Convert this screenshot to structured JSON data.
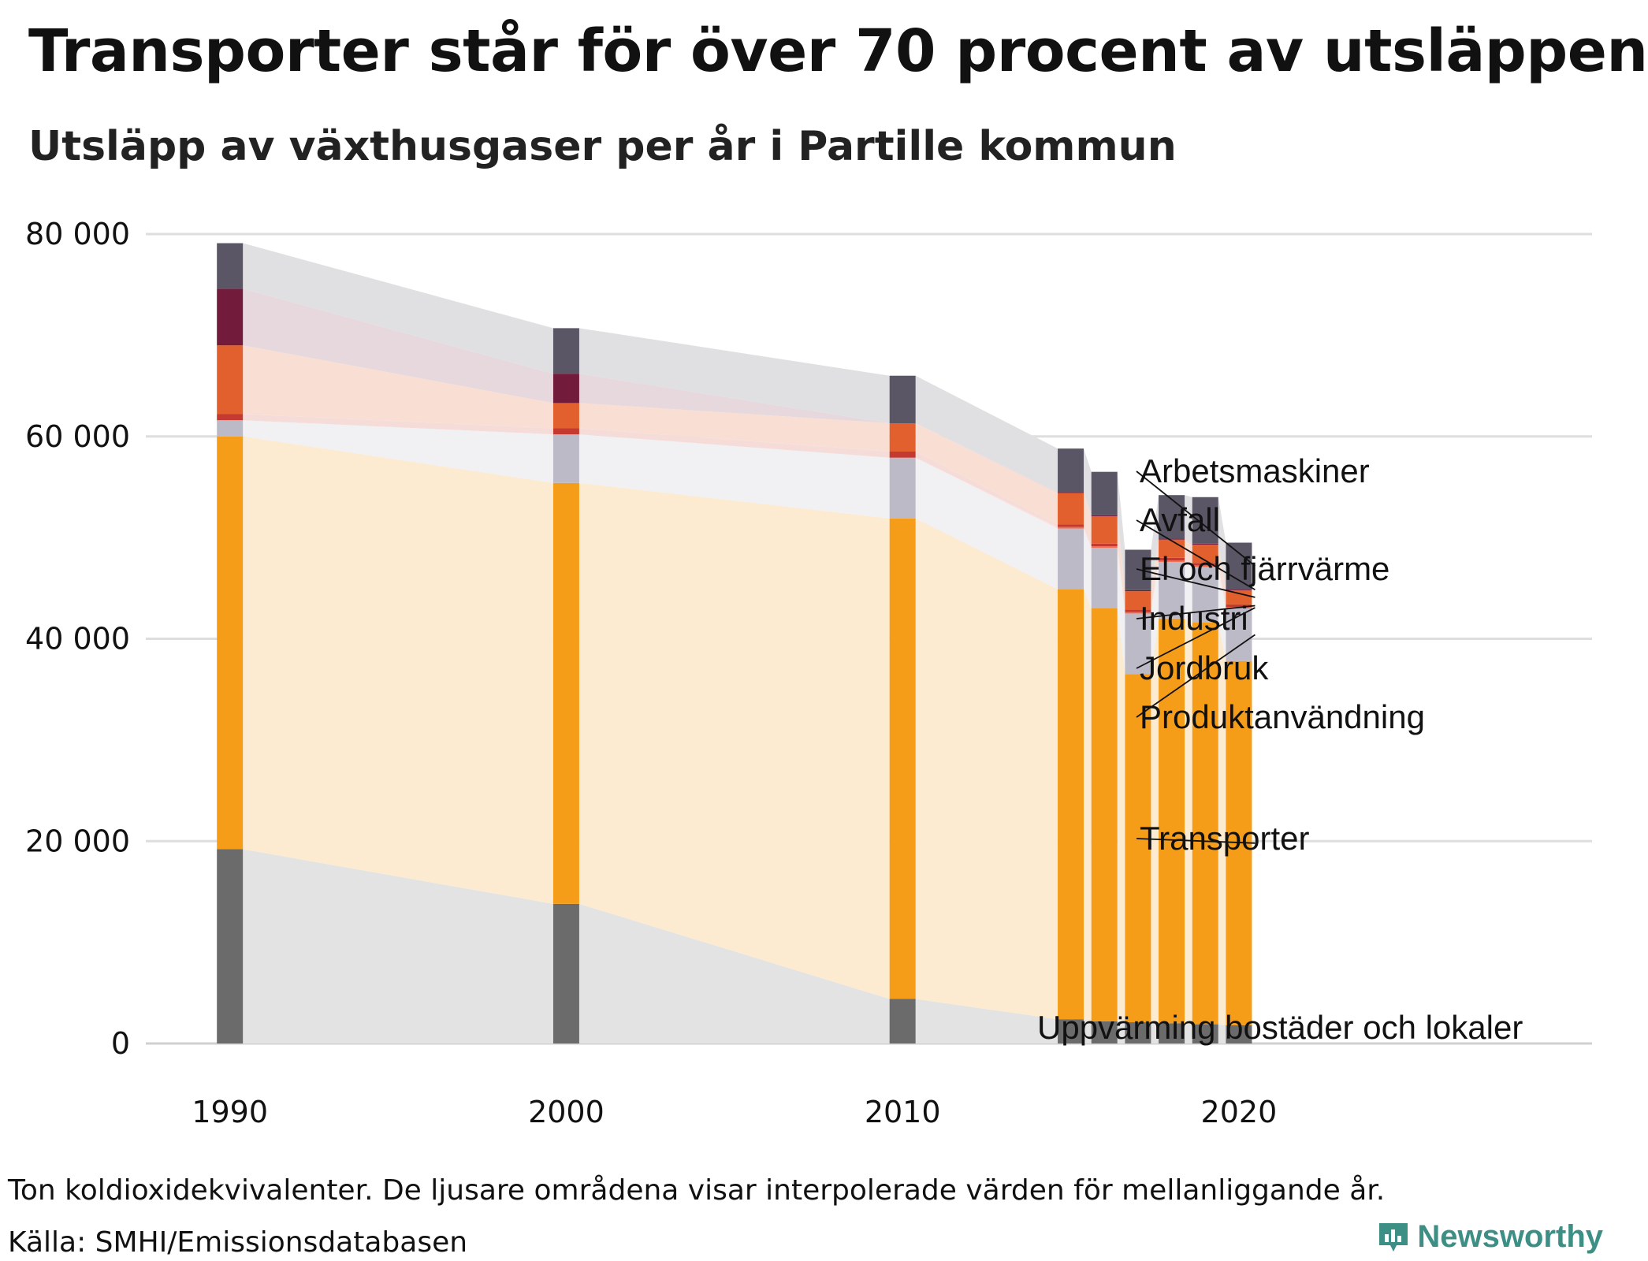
{
  "header": {
    "title": "Transporter står för över 70 procent av utsläppen",
    "subtitle": "Utsläpp av växthusgaser per år i Partille kommun"
  },
  "footer": {
    "note": "Ton koldioxidekvivalenter. De ljusare områdena visar interpolerade värden för mellanliggande år.",
    "source": "Källa: SMHI/Emissionsdatabasen",
    "brand": "Newsworthy"
  },
  "chart_data": {
    "type": "bar",
    "stacked": true,
    "title": "Transporter står för över 70 procent av utsläppen",
    "subtitle": "Utsläpp av växthusgaser per år i Partille kommun",
    "ylabel": "Ton koldioxidekvivalenter",
    "ylim": [
      0,
      80000
    ],
    "yticks": [
      0,
      20000,
      40000,
      60000,
      80000
    ],
    "ytick_labels": [
      "0",
      "20 000",
      "40 000",
      "60 000",
      "80 000"
    ],
    "xticks": [
      1990,
      2000,
      2010,
      2020
    ],
    "xtick_labels": [
      "1990",
      "2000",
      "2010",
      "2020"
    ],
    "xlim": [
      1987.5,
      2030.5
    ],
    "grid": true,
    "note": "De ljusare områdena visar interpolerade värden för mellanliggande år.",
    "x": [
      1990,
      2000,
      2010,
      2015,
      2016,
      2017,
      2018,
      2019,
      2020
    ],
    "series": [
      {
        "name": "Uppvärming bostäder och lokaler",
        "color": "#6b6b6b",
        "area_color": "#e3e3e3",
        "values": [
          19200,
          13800,
          4400,
          2400,
          2200,
          2100,
          2000,
          1900,
          1800
        ]
      },
      {
        "name": "Transporter",
        "color": "#f59d19",
        "area_color": "#fcebd1",
        "values": [
          40800,
          41600,
          47500,
          42500,
          40800,
          34400,
          40000,
          39700,
          36000
        ]
      },
      {
        "name": "Produktanvändning",
        "color": "#bdbac8",
        "area_color": "#f1f0f3",
        "values": [
          1600,
          4800,
          6000,
          6000,
          6000,
          6000,
          5600,
          5500,
          5200
        ]
      },
      {
        "name": "Jordbruk",
        "color": "#f26b4e",
        "area_color": "#fbe0da",
        "values": [
          0,
          0,
          0,
          150,
          150,
          150,
          150,
          150,
          150
        ]
      },
      {
        "name": "Industri",
        "color": "#c53a30",
        "area_color": "#f5dcd8",
        "values": [
          600,
          600,
          600,
          250,
          250,
          250,
          250,
          250,
          250
        ]
      },
      {
        "name": "El och fjärrvärme",
        "color": "#e1602d",
        "area_color": "#f9dfd3",
        "values": [
          6800,
          2500,
          2800,
          3100,
          2700,
          1800,
          1800,
          1800,
          1400
        ]
      },
      {
        "name": "Avfall",
        "color": "#731b3a",
        "area_color": "#e7d8dd",
        "values": [
          5600,
          2900,
          0,
          100,
          100,
          100,
          100,
          100,
          100
        ]
      },
      {
        "name": "Arbetsmaskiner",
        "color": "#5a5665",
        "area_color": "#e0dfe2",
        "values": [
          4500,
          4500,
          4700,
          4300,
          4300,
          4000,
          4300,
          4600,
          4600
        ]
      }
    ],
    "label_order_top_to_bottom": [
      "Arbetsmaskiner",
      "Avfall",
      "El och fjärrvärme",
      "Industri",
      "Jordbruk",
      "Produktanvändning",
      "Transporter",
      "Uppvärming bostäder och lokaler"
    ]
  }
}
